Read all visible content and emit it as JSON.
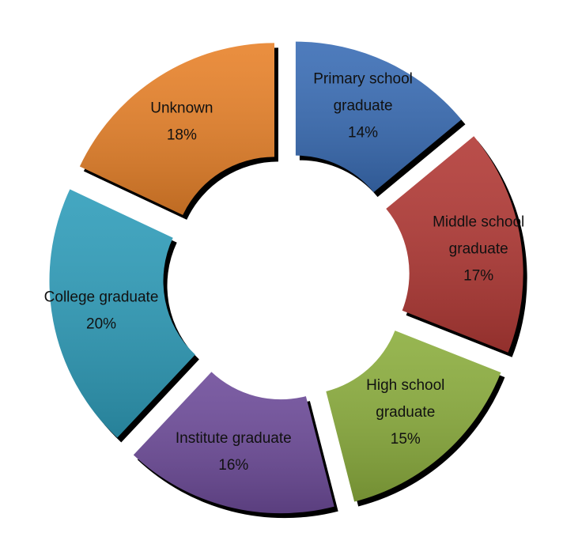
{
  "chart_data": {
    "type": "pie",
    "style": "exploded-doughnut",
    "title": "",
    "legend": "none",
    "categories": [
      "Primary school graduate",
      "Middle school graduate",
      "High school graduate",
      "Institute graduate",
      "College graduate",
      "Unknown"
    ],
    "values": [
      14,
      17,
      15,
      16,
      20,
      18
    ],
    "labels": [
      {
        "lines": [
          "Primary school",
          "graduate"
        ],
        "pct": "14%"
      },
      {
        "lines": [
          "Middle school",
          "graduate"
        ],
        "pct": "17%"
      },
      {
        "lines": [
          "High school",
          "graduate"
        ],
        "pct": "15%"
      },
      {
        "lines": [
          "Institute graduate"
        ],
        "pct": "16%"
      },
      {
        "lines": [
          "College graduate"
        ],
        "pct": "20%"
      },
      {
        "lines": [
          "Unknown"
        ],
        "pct": "18%"
      }
    ],
    "colors": [
      "#3A6DB5",
      "#B23A36",
      "#8CAE3E",
      "#6E4C9A",
      "#2F9DBA",
      "#E8822A"
    ]
  }
}
